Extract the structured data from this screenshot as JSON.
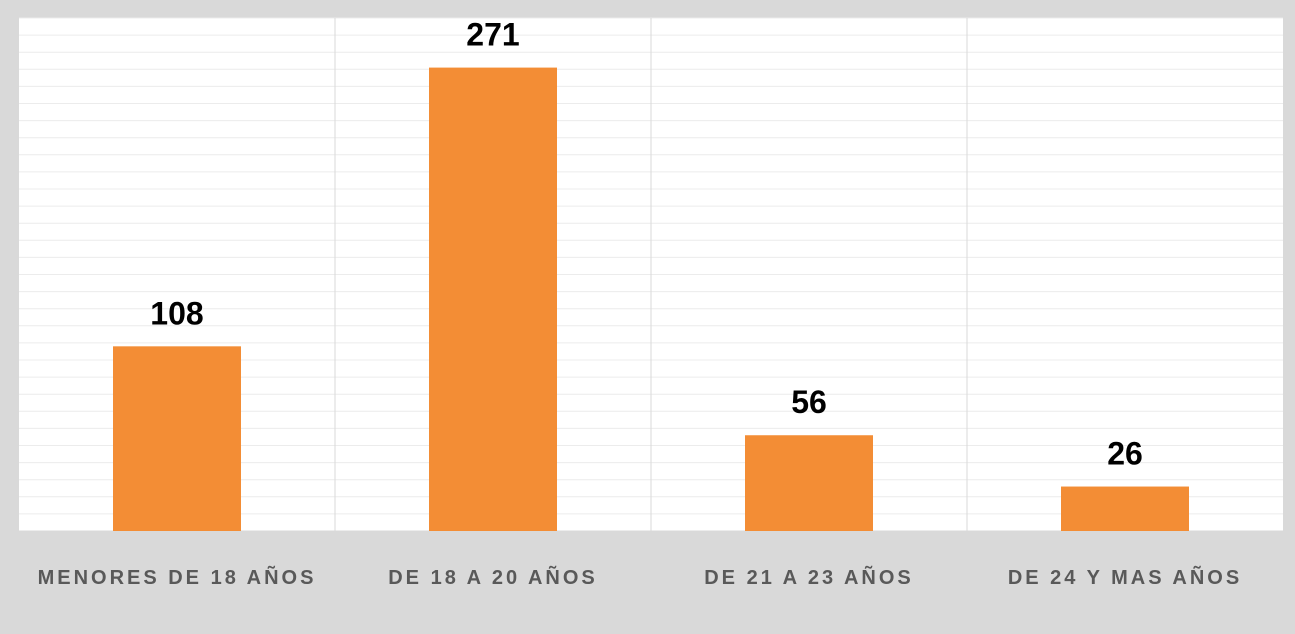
{
  "chart_data": {
    "type": "bar",
    "categories": [
      "MENORES DE 18 AÑOS",
      "DE 18 A 20 AÑOS",
      "DE 21 A 23 AÑOS",
      "DE 24 Y MAS AÑOS"
    ],
    "values": [
      108,
      271,
      56,
      26
    ],
    "color": "#f38d35",
    "ylim": [
      0,
      300
    ],
    "yticks": [
      0,
      10,
      20,
      30,
      40,
      50,
      60,
      70,
      80,
      90,
      100,
      110,
      120,
      130,
      140,
      150,
      160,
      170,
      180,
      190,
      200,
      210,
      220,
      230,
      240,
      250,
      260,
      270,
      280,
      290,
      300
    ],
    "grid": true
  }
}
